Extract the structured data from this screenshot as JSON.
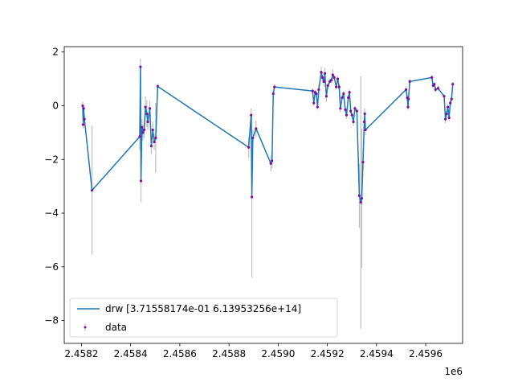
{
  "chart_data": {
    "type": "line",
    "x_multiplier_label": "1e6",
    "x_tick_labels": [
      "2.4582",
      "2.4584",
      "2.4586",
      "2.4588",
      "2.4590",
      "2.4592",
      "2.4594",
      "2.4596"
    ],
    "x_ticks": [
      2458200,
      2458400,
      2458600,
      2458800,
      2459000,
      2459200,
      2459400,
      2459600
    ],
    "y_ticks": [
      -8,
      -6,
      -4,
      -2,
      0,
      2
    ],
    "y_tick_labels": [
      "−8",
      "−6",
      "−4",
      "−2",
      "0",
      "2"
    ],
    "xlim": [
      2458130,
      2459750
    ],
    "ylim": [
      -8.85,
      2.2
    ],
    "grid": false,
    "legend_position": "lower-left",
    "series": [
      {
        "name": "drw [3.71558174e-01 6.13953256e+14]",
        "kind": "line",
        "color": "#1f77b4",
        "x": [
          2458205,
          2458207,
          2458209,
          2458212,
          2458243,
          2458437,
          2458440,
          2458442,
          2458446,
          2458450,
          2458455,
          2458460,
          2458466,
          2458470,
          2458478,
          2458484,
          2458490,
          2458496,
          2458502,
          2458510,
          2458880,
          2458890,
          2458893,
          2458897,
          2458910,
          2458970,
          2458975,
          2458980,
          2458985,
          2459140,
          2459145,
          2459150,
          2459155,
          2459160,
          2459165,
          2459175,
          2459180,
          2459186,
          2459190,
          2459196,
          2459202,
          2459210,
          2459216,
          2459222,
          2459228,
          2459236,
          2459242,
          2459248,
          2459253,
          2459260,
          2459266,
          2459273,
          2459278,
          2459285,
          2459290,
          2459295,
          2459300,
          2459306,
          2459312,
          2459320,
          2459330,
          2459336,
          2459340,
          2459345,
          2459350,
          2459352,
          2459355,
          2459520,
          2459525,
          2459528,
          2459530,
          2459535,
          2459625,
          2459630,
          2459635,
          2459640,
          2459650,
          2459675,
          2459680,
          2459685,
          2459690,
          2459695,
          2459700,
          2459705,
          2459710
        ],
        "y": [
          0.0,
          -0.7,
          -0.1,
          -0.5,
          -3.15,
          -1.15,
          1.45,
          -2.8,
          -0.8,
          -1.0,
          -0.9,
          -0.05,
          -0.3,
          -0.6,
          -0.1,
          -1.5,
          -0.9,
          -1.35,
          -1.2,
          0.72,
          -1.55,
          -0.35,
          -3.4,
          -1.2,
          -0.85,
          -2.15,
          -2.05,
          0.45,
          0.7,
          0.55,
          0.1,
          0.5,
          0.45,
          -0.05,
          0.6,
          1.25,
          1.05,
          0.9,
          1.2,
          0.35,
          0.75,
          0.9,
          0.95,
          1.15,
          1.05,
          0.7,
          1.0,
          0.7,
          -0.1,
          0.3,
          0.45,
          -0.15,
          -0.35,
          0.3,
          0.5,
          -0.2,
          -0.35,
          -0.6,
          -0.1,
          -0.2,
          -3.35,
          -3.6,
          -3.45,
          -2.1,
          -0.6,
          -0.3,
          -0.9,
          0.6,
          0.3,
          -0.05,
          0.25,
          0.9,
          1.05,
          0.75,
          0.8,
          0.6,
          0.65,
          0.35,
          -0.5,
          -0.3,
          -0.05,
          -0.45,
          0.1,
          0.25,
          0.8
        ]
      },
      {
        "name": "data",
        "kind": "errorbar",
        "marker_color": "#7b0fa5",
        "errorbar_color": "#c0c0c0",
        "x": [
          2458205,
          2458207,
          2458209,
          2458212,
          2458243,
          2458437,
          2458440,
          2458442,
          2458446,
          2458450,
          2458455,
          2458460,
          2458466,
          2458470,
          2458478,
          2458484,
          2458490,
          2458496,
          2458502,
          2458510,
          2458880,
          2458890,
          2458893,
          2458897,
          2458910,
          2458970,
          2458975,
          2458980,
          2458985,
          2459140,
          2459145,
          2459150,
          2459155,
          2459160,
          2459165,
          2459175,
          2459180,
          2459186,
          2459190,
          2459196,
          2459202,
          2459210,
          2459216,
          2459222,
          2459228,
          2459236,
          2459242,
          2459248,
          2459253,
          2459260,
          2459266,
          2459273,
          2459278,
          2459285,
          2459290,
          2459295,
          2459300,
          2459306,
          2459312,
          2459320,
          2459330,
          2459336,
          2459340,
          2459345,
          2459350,
          2459352,
          2459355,
          2459520,
          2459525,
          2459528,
          2459530,
          2459535,
          2459625,
          2459630,
          2459635,
          2459640,
          2459650,
          2459675,
          2459680,
          2459685,
          2459690,
          2459695,
          2459700,
          2459705,
          2459710
        ],
        "y": [
          0.0,
          -0.7,
          -0.1,
          -0.5,
          -3.15,
          -1.15,
          1.45,
          -2.8,
          -0.8,
          -1.0,
          -0.9,
          -0.05,
          -0.3,
          -0.6,
          -0.1,
          -1.5,
          -0.9,
          -1.35,
          -1.2,
          0.72,
          -1.55,
          -0.35,
          -3.4,
          -1.2,
          -0.85,
          -2.15,
          -2.05,
          0.45,
          0.7,
          0.55,
          0.1,
          0.5,
          0.45,
          -0.05,
          0.6,
          1.25,
          1.05,
          0.9,
          1.2,
          0.35,
          0.75,
          0.9,
          0.95,
          1.15,
          1.05,
          0.7,
          1.0,
          0.7,
          -0.1,
          0.3,
          0.45,
          -0.15,
          -0.35,
          0.3,
          0.5,
          -0.2,
          -0.35,
          -0.6,
          -0.1,
          -0.2,
          -3.35,
          -3.6,
          -3.45,
          -2.1,
          -0.6,
          -0.3,
          -0.9,
          0.6,
          0.3,
          -0.05,
          0.25,
          0.9,
          1.05,
          0.75,
          0.8,
          0.6,
          0.65,
          0.35,
          -0.5,
          -0.3,
          -0.05,
          -0.45,
          0.1,
          0.25,
          0.8
        ],
        "yerr": [
          0.15,
          0.15,
          0.1,
          0.1,
          2.4,
          0.5,
          0.3,
          0.8,
          0.3,
          0.3,
          0.3,
          0.4,
          0.5,
          0.3,
          0.3,
          0.3,
          0.3,
          0.3,
          1.3,
          0.1,
          0.4,
          0.25,
          3.0,
          0.3,
          0.3,
          0.3,
          0.3,
          0.15,
          0.1,
          0.1,
          0.1,
          0.1,
          0.1,
          0.1,
          0.2,
          0.2,
          0.2,
          0.2,
          0.2,
          0.2,
          0.1,
          0.1,
          0.1,
          0.2,
          0.1,
          0.1,
          0.1,
          0.1,
          0.15,
          0.1,
          0.1,
          0.1,
          0.15,
          0.1,
          0.1,
          0.1,
          0.1,
          0.15,
          0.1,
          0.1,
          1.2,
          4.7,
          2.6,
          0.3,
          0.2,
          0.2,
          0.2,
          0.1,
          0.1,
          0.1,
          0.1,
          0.1,
          0.1,
          0.1,
          0.1,
          0.1,
          0.1,
          0.1,
          0.15,
          0.15,
          0.1,
          0.1,
          0.1,
          0.1,
          0.1
        ]
      }
    ]
  }
}
